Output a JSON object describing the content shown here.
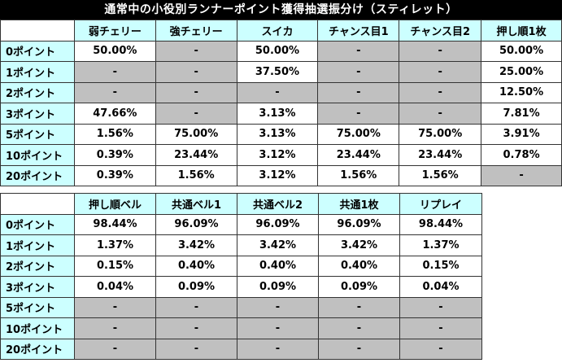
{
  "title": "通常中の小役別ランナーポイント獲得抽選振分け（スティレット）",
  "table1": {
    "columns": [
      "弱チェリー",
      "強チェリー",
      "スイカ",
      "チャンス目1",
      "チャンス目2",
      "押し順1枚"
    ],
    "rows": [
      {
        "label": "0ポイント",
        "cells": [
          "50.00%",
          "-",
          "50.00%",
          "-",
          "-",
          "50.00%"
        ]
      },
      {
        "label": "1ポイント",
        "cells": [
          "-",
          "-",
          "37.50%",
          "-",
          "-",
          "25.00%"
        ]
      },
      {
        "label": "2ポイント",
        "cells": [
          "-",
          "-",
          "-",
          "-",
          "-",
          "12.50%"
        ]
      },
      {
        "label": "3ポイント",
        "cells": [
          "47.66%",
          "-",
          "3.13%",
          "-",
          "-",
          "7.81%"
        ]
      },
      {
        "label": "5ポイント",
        "cells": [
          "1.56%",
          "75.00%",
          "3.13%",
          "75.00%",
          "75.00%",
          "3.91%"
        ]
      },
      {
        "label": "10ポイント",
        "cells": [
          "0.39%",
          "23.44%",
          "3.12%",
          "23.44%",
          "23.44%",
          "0.78%"
        ]
      },
      {
        "label": "20ポイント",
        "cells": [
          "0.39%",
          "1.56%",
          "3.12%",
          "1.56%",
          "1.56%",
          "-"
        ]
      }
    ]
  },
  "table2": {
    "columns": [
      "押し順ベル",
      "共通ベル1",
      "共通ベル2",
      "共通1枚",
      "リプレイ"
    ],
    "rows": [
      {
        "label": "0ポイント",
        "cells": [
          "98.44%",
          "96.09%",
          "96.09%",
          "96.09%",
          "98.44%"
        ]
      },
      {
        "label": "1ポイント",
        "cells": [
          "1.37%",
          "3.42%",
          "3.42%",
          "3.42%",
          "1.37%"
        ]
      },
      {
        "label": "2ポイント",
        "cells": [
          "0.15%",
          "0.40%",
          "0.40%",
          "0.40%",
          "0.15%"
        ]
      },
      {
        "label": "3ポイント",
        "cells": [
          "0.04%",
          "0.09%",
          "0.09%",
          "0.09%",
          "0.04%"
        ]
      },
      {
        "label": "5ポイント",
        "cells": [
          "-",
          "-",
          "-",
          "-",
          "-"
        ]
      },
      {
        "label": "10ポイント",
        "cells": [
          "-",
          "-",
          "-",
          "-",
          "-"
        ]
      },
      {
        "label": "20ポイント",
        "cells": [
          "-",
          "-",
          "-",
          "-",
          "-"
        ]
      }
    ]
  },
  "colors": {
    "header_bg": "#ccffff",
    "empty_cell_bg": "#c0c0c0",
    "title_bg": "#000000"
  }
}
